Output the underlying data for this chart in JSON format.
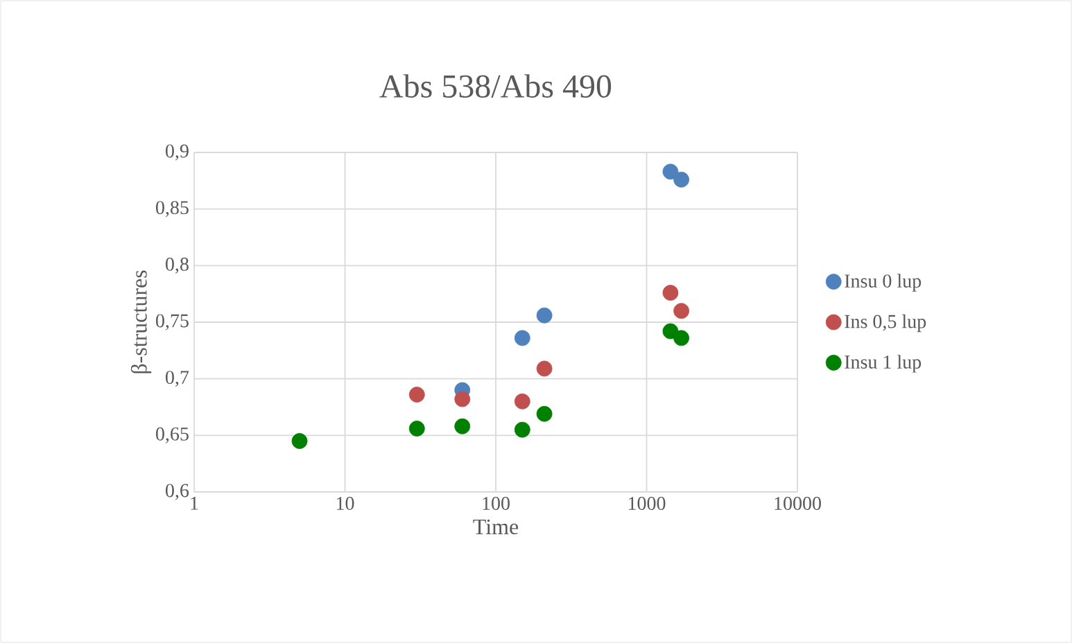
{
  "chart_data": {
    "type": "scatter",
    "title": "Abs 538/Abs 490",
    "xlabel": "Time",
    "ylabel": "β-structures",
    "log": "x",
    "grid": true,
    "legend": "right",
    "marker": "circle",
    "xlim": [
      1,
      10000
    ],
    "xticks": [
      1,
      10,
      100,
      1000,
      10000
    ],
    "ylim": [
      0.6,
      0.9
    ],
    "yticks": [
      {
        "value": 0.6,
        "label": "0,6"
      },
      {
        "value": 0.65,
        "label": "0,65"
      },
      {
        "value": 0.7,
        "label": "0,7"
      },
      {
        "value": 0.75,
        "label": "0,75"
      },
      {
        "value": 0.8,
        "label": "0,8"
      },
      {
        "value": 0.85,
        "label": "0,85"
      },
      {
        "value": 0.9,
        "label": "0,9"
      }
    ],
    "series": [
      {
        "name": "Insu 0 lup",
        "color": "#4f81bd",
        "x": [
          60,
          150,
          210,
          1440,
          1700
        ],
        "values": [
          0.69,
          0.736,
          0.756,
          0.883,
          0.876
        ]
      },
      {
        "name": "Ins 0,5 lup",
        "color": "#c0504d",
        "x": [
          30,
          60,
          150,
          210,
          1440,
          1700
        ],
        "values": [
          0.686,
          0.682,
          0.68,
          0.709,
          0.776,
          0.76
        ]
      },
      {
        "name": "Insu 1 lup",
        "color": "#008000",
        "x": [
          5,
          30,
          60,
          150,
          210,
          1440,
          1700
        ],
        "values": [
          0.645,
          0.656,
          0.658,
          0.655,
          0.669,
          0.742,
          0.736
        ]
      }
    ]
  }
}
